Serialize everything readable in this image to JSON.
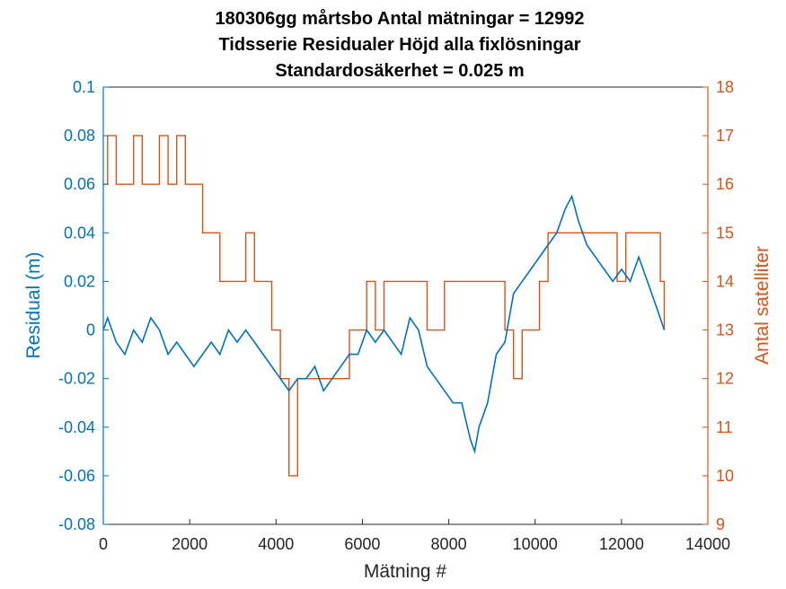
{
  "chart_data": {
    "type": "line",
    "title": [
      "180306gg mårtsbo Antal mätningar = 12992",
      "Tidsserie Residualer Höjd alla fixlösningar",
      "Standardosäkerhet = 0.025 m"
    ],
    "xlabel": "Mätning #",
    "ylabel_left": "Residual (m)",
    "ylabel_right": "Antal satelliter",
    "xlim": [
      0,
      14000
    ],
    "ylim_left": [
      -0.08,
      0.1
    ],
    "ylim_right": [
      9,
      18
    ],
    "xticks": [
      "0",
      "2000",
      "4000",
      "6000",
      "8000",
      "10000",
      "12000",
      "14000"
    ],
    "yticks_left": [
      "-0.08",
      "-0.06",
      "-0.04",
      "-0.02",
      "0",
      "0.02",
      "0.04",
      "0.06",
      "0.08",
      "0.1"
    ],
    "yticks_right": [
      "9",
      "10",
      "11",
      "12",
      "13",
      "14",
      "15",
      "16",
      "17",
      "18"
    ],
    "colors": {
      "left": "#0072BD",
      "right": "#D95319"
    },
    "grid": false,
    "series": [
      {
        "axis": "left",
        "x": [
          0,
          100,
          300,
          500,
          700,
          900,
          1100,
          1300,
          1500,
          1700,
          1900,
          2100,
          2300,
          2500,
          2700,
          2900,
          3100,
          3300,
          3500,
          3700,
          3900,
          4100,
          4300,
          4500,
          4700,
          4900,
          5100,
          5300,
          5500,
          5700,
          5900,
          6100,
          6300,
          6500,
          6700,
          6900,
          7100,
          7300,
          7500,
          7700,
          7900,
          8100,
          8300,
          8500,
          8600,
          8700,
          8900,
          9100,
          9300,
          9500,
          9700,
          9900,
          10100,
          10300,
          10500,
          10700,
          10850,
          11000,
          11200,
          11400,
          11600,
          11800,
          12000,
          12200,
          12400,
          12600,
          12800,
          12992
        ],
        "values": [
          0.0,
          0.005,
          -0.005,
          -0.01,
          0.0,
          -0.005,
          0.005,
          0.0,
          -0.01,
          -0.005,
          -0.01,
          -0.015,
          -0.01,
          -0.005,
          -0.01,
          0.0,
          -0.005,
          0.0,
          -0.005,
          -0.01,
          -0.015,
          -0.02,
          -0.025,
          -0.02,
          -0.02,
          -0.015,
          -0.025,
          -0.02,
          -0.015,
          -0.01,
          -0.01,
          0.0,
          -0.005,
          0.0,
          -0.005,
          -0.01,
          0.005,
          0.0,
          -0.015,
          -0.02,
          -0.025,
          -0.03,
          -0.03,
          -0.045,
          -0.05,
          -0.04,
          -0.03,
          -0.01,
          -0.005,
          0.015,
          0.02,
          0.025,
          0.03,
          0.035,
          0.04,
          0.05,
          0.055,
          0.045,
          0.035,
          0.03,
          0.025,
          0.02,
          0.025,
          0.02,
          0.03,
          0.02,
          0.01,
          0.0
        ]
      },
      {
        "axis": "right",
        "x": [
          0,
          100,
          300,
          500,
          700,
          900,
          1100,
          1300,
          1500,
          1700,
          1900,
          2100,
          2300,
          2500,
          2700,
          2900,
          3100,
          3300,
          3500,
          3700,
          3900,
          4100,
          4300,
          4500,
          4700,
          4900,
          5100,
          5300,
          5500,
          5700,
          5900,
          6100,
          6300,
          6500,
          6700,
          6900,
          7100,
          7300,
          7500,
          7700,
          7900,
          8100,
          8300,
          8500,
          8700,
          8900,
          9100,
          9300,
          9500,
          9700,
          9900,
          10100,
          10300,
          10500,
          10700,
          10900,
          11100,
          11300,
          11500,
          11700,
          11900,
          12100,
          12300,
          12500,
          12700,
          12900,
          12992
        ],
        "values": [
          16,
          17,
          16,
          16,
          17,
          16,
          16,
          17,
          16,
          17,
          16,
          16,
          15,
          15,
          14,
          14,
          14,
          15,
          14,
          14,
          13,
          12,
          10,
          12,
          12,
          12,
          12,
          12,
          12,
          13,
          13,
          14,
          13,
          14,
          14,
          14,
          14,
          14,
          13,
          13,
          14,
          14,
          14,
          14,
          14,
          14,
          14,
          13,
          12,
          13,
          13,
          14,
          15,
          15,
          15,
          15,
          15,
          15,
          15,
          15,
          14,
          15,
          15,
          15,
          15,
          14,
          13
        ]
      }
    ]
  }
}
